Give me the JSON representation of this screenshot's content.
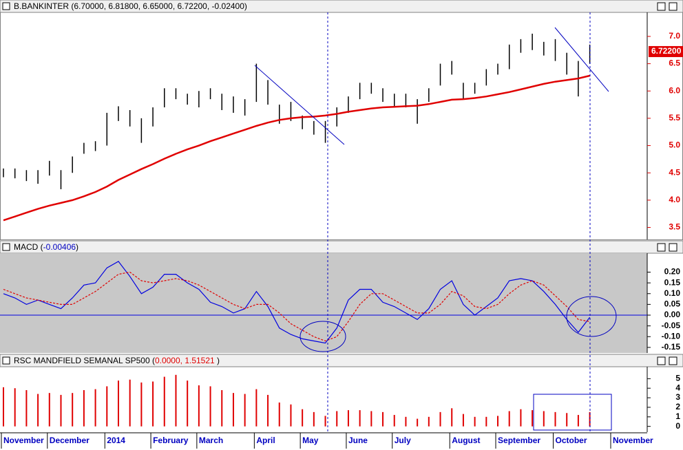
{
  "chart_data": [
    {
      "type": "range",
      "title": "B.BANKINTER (6.70000, 6.81800, 6.65000, 6.72200, -0.02400)",
      "color": "#000000",
      "high": [
        4.58,
        4.58,
        4.55,
        4.55,
        4.72,
        4.55,
        4.8,
        5.05,
        5.08,
        5.6,
        5.72,
        5.65,
        5.5,
        5.7,
        6.05,
        6.05,
        5.95,
        6.0,
        6.05,
        5.95,
        5.9,
        5.85,
        6.5,
        6.2,
        5.75,
        5.8,
        5.55,
        5.45,
        5.45,
        5.7,
        5.9,
        6.15,
        6.15,
        6.05,
        5.95,
        5.95,
        5.85,
        6.05,
        6.5,
        6.55,
        6.15,
        6.15,
        6.4,
        6.5,
        6.85,
        6.95,
        7.05,
        6.9,
        6.95,
        6.7,
        6.55,
        6.85,
        null,
        null
      ],
      "low": [
        4.42,
        4.4,
        4.35,
        4.3,
        4.45,
        4.2,
        4.5,
        4.85,
        4.9,
        5.0,
        5.45,
        5.35,
        5.05,
        5.35,
        5.7,
        5.85,
        5.75,
        5.7,
        5.85,
        5.65,
        5.6,
        5.55,
        5.8,
        5.75,
        5.4,
        5.45,
        5.3,
        5.2,
        5.05,
        5.35,
        5.6,
        5.85,
        5.95,
        5.8,
        5.7,
        5.7,
        5.4,
        5.8,
        6.1,
        6.3,
        5.85,
        5.95,
        6.1,
        6.3,
        6.4,
        6.7,
        6.75,
        6.65,
        6.55,
        6.3,
        5.9,
        6.5,
        null,
        null
      ],
      "series": [
        {
          "color": "#e00000",
          "values": [
            3.63,
            3.7,
            3.77,
            3.84,
            3.9,
            3.95,
            4.0,
            4.07,
            4.15,
            4.25,
            4.37,
            4.47,
            4.57,
            4.66,
            4.76,
            4.85,
            4.93,
            5.0,
            5.08,
            5.15,
            5.22,
            5.29,
            5.36,
            5.42,
            5.47,
            5.5,
            5.52,
            5.53,
            5.55,
            5.58,
            5.62,
            5.65,
            5.68,
            5.7,
            5.71,
            5.72,
            5.73,
            5.76,
            5.8,
            5.84,
            5.85,
            5.87,
            5.9,
            5.94,
            5.98,
            6.03,
            6.08,
            6.13,
            6.17,
            6.2,
            6.23,
            6.28,
            null,
            null
          ]
        }
      ],
      "last_price": {
        "value": 6.722,
        "label": "6.72200"
      },
      "axis_color": "#e00000",
      "ylim": [
        3.28,
        7.44
      ],
      "yticks": [
        3.5,
        {
          "value": 4,
          "label": "4.0"
        },
        4.5,
        {
          "value": 5,
          "label": "5.0"
        },
        5.5,
        {
          "value": 6,
          "label": "6.0"
        },
        6.5,
        {
          "value": 7,
          "label": "7.0"
        }
      ]
    },
    {
      "type": "line",
      "title_parts": [
        "MACD (",
        "-0.00406",
        ")"
      ],
      "title_color": "#0000c0",
      "background": "#c8c8c8",
      "zero_line": true,
      "axis_color": "#000000",
      "series": [
        {
          "color": "#0000e0",
          "values": [
            0.1,
            0.08,
            0.05,
            0.07,
            0.05,
            0.03,
            0.08,
            0.14,
            0.15,
            0.22,
            0.25,
            0.18,
            0.1,
            0.13,
            0.19,
            0.19,
            0.15,
            0.12,
            0.06,
            0.04,
            0.01,
            0.03,
            0.11,
            0.04,
            -0.06,
            -0.09,
            -0.11,
            -0.12,
            -0.13,
            -0.06,
            0.07,
            0.12,
            0.12,
            0.06,
            0.04,
            0.01,
            -0.02,
            0.03,
            0.12,
            0.16,
            0.05,
            0.0,
            0.04,
            0.08,
            0.16,
            0.17,
            0.16,
            0.11,
            0.05,
            -0.02,
            -0.08,
            -0.01,
            null,
            null
          ]
        },
        {
          "color": "#e00000",
          "dashed": true,
          "values": [
            0.12,
            0.1,
            0.08,
            0.07,
            0.06,
            0.05,
            0.05,
            0.08,
            0.11,
            0.15,
            0.19,
            0.2,
            0.16,
            0.15,
            0.16,
            0.17,
            0.16,
            0.14,
            0.11,
            0.08,
            0.05,
            0.03,
            0.05,
            0.05,
            0.01,
            -0.04,
            -0.07,
            -0.1,
            -0.12,
            -0.1,
            -0.03,
            0.05,
            0.1,
            0.1,
            0.07,
            0.04,
            0.01,
            0.01,
            0.05,
            0.11,
            0.09,
            0.04,
            0.03,
            0.05,
            0.1,
            0.14,
            0.16,
            0.14,
            0.09,
            0.04,
            -0.02,
            -0.03,
            null,
            null
          ]
        }
      ],
      "ylim": [
        -0.176,
        0.288
      ],
      "yticks": [
        {
          "value": 0.2,
          "label": "0.20"
        },
        0.15,
        {
          "value": 0.1,
          "label": "0.10"
        },
        0.05,
        {
          "value": 0,
          "label": "0.00"
        },
        -0.05,
        {
          "value": -0.1,
          "label": "-0.10"
        },
        -0.15
      ]
    },
    {
      "type": "bar",
      "title_parts": [
        "RSC MANDFIELD SEMANAL SP500 (",
        "0.0000, 1.51521",
        " )"
      ],
      "title_color": "#e00000",
      "color": "#e00000",
      "axis_color": "#000000",
      "values": [
        4.1,
        4.0,
        3.8,
        3.4,
        3.5,
        3.3,
        3.5,
        3.8,
        3.9,
        4.2,
        4.8,
        4.9,
        4.6,
        4.7,
        5.2,
        5.4,
        4.8,
        4.3,
        4.2,
        3.8,
        3.5,
        3.4,
        3.9,
        3.3,
        2.5,
        2.3,
        1.8,
        1.5,
        1.1,
        1.6,
        1.7,
        1.7,
        1.6,
        1.5,
        1.2,
        1.0,
        0.8,
        1.0,
        1.5,
        1.9,
        1.3,
        1.0,
        1.0,
        1.1,
        1.6,
        1.8,
        1.7,
        1.6,
        1.5,
        1.4,
        1.2,
        1.5,
        null,
        null
      ],
      "categories": [
        "November",
        null,
        null,
        null,
        "December",
        null,
        null,
        null,
        null,
        "2014",
        null,
        null,
        null,
        "February",
        null,
        null,
        null,
        "March",
        null,
        null,
        null,
        null,
        "April",
        null,
        null,
        null,
        "May",
        null,
        null,
        null,
        "June",
        null,
        null,
        null,
        "July",
        null,
        null,
        null,
        null,
        "August",
        null,
        null,
        null,
        "September",
        null,
        null,
        null,
        null,
        "October",
        null,
        null,
        null,
        null,
        "November"
      ],
      "ylim": [
        -0.6,
        6.25
      ],
      "yticks": [
        0,
        1,
        2,
        3,
        4,
        5
      ]
    }
  ]
}
